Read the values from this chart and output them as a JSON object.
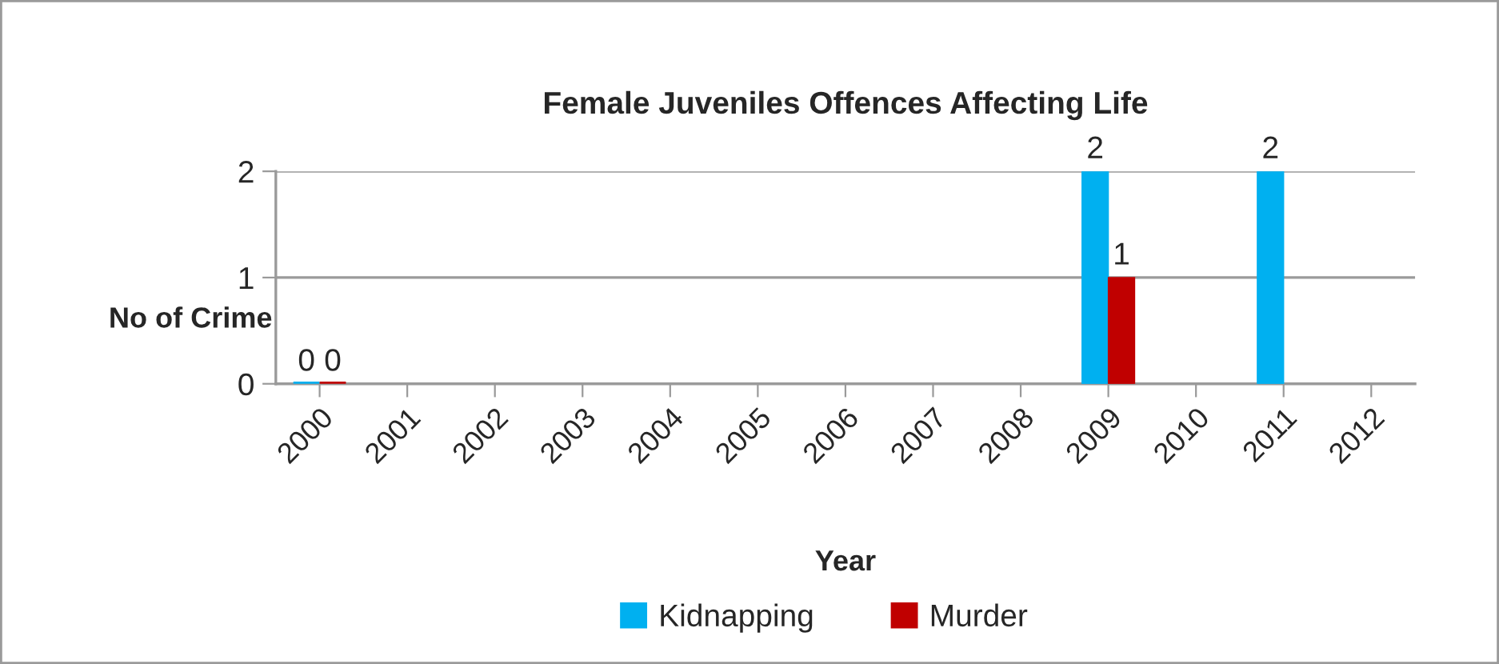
{
  "chart_data": {
    "type": "bar",
    "title": "Female Juveniles Offences Affecting Life",
    "xlabel": "Year",
    "ylabel": "No of Crime",
    "categories": [
      "2000",
      "2001",
      "2002",
      "2003",
      "2004",
      "2005",
      "2006",
      "2007",
      "2008",
      "2009",
      "2010",
      "2011",
      "2012"
    ],
    "series": [
      {
        "name": "Kidnapping",
        "color": "#00b0f0",
        "values": [
          0,
          null,
          null,
          null,
          null,
          null,
          null,
          null,
          null,
          2,
          null,
          2,
          null
        ],
        "value_labels": [
          "0",
          null,
          null,
          null,
          null,
          null,
          null,
          null,
          null,
          "2",
          null,
          "2",
          null
        ]
      },
      {
        "name": "Murder",
        "color": "#c00000",
        "values": [
          0,
          null,
          null,
          null,
          null,
          null,
          null,
          null,
          null,
          1,
          null,
          null,
          null
        ],
        "value_labels": [
          "0",
          null,
          null,
          null,
          null,
          null,
          null,
          null,
          null,
          "1",
          null,
          null,
          null
        ]
      }
    ],
    "ylim": [
      0,
      2
    ],
    "yticks": [
      0,
      1,
      2
    ],
    "grid": "y",
    "legend": "bottom"
  }
}
